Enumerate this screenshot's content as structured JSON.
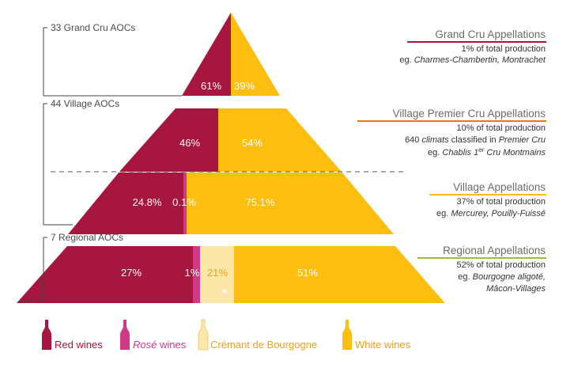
{
  "colors": {
    "red": "#a6163e",
    "rose": "#d03a85",
    "cremant": "#fde7a8",
    "white": "#fdbe10",
    "grand_cru_accent": "#a6163e",
    "premier_cru_accent": "#e07b1a",
    "village_accent": "#fdbe10",
    "regional_accent": "#9cbf3a"
  },
  "tiers": {
    "grand_cru_label": "33 Grand Cru AOCs",
    "village_label": "44 Village AOCs",
    "regional_label": "7 Regional AOCs"
  },
  "chart_data": {
    "type": "bar",
    "orientation": "stacked pyramid",
    "levels": [
      {
        "name": "Grand Cru",
        "red": "61%",
        "white": "39%"
      },
      {
        "name": "Village Premier Cru",
        "red": "46%",
        "white": "54%"
      },
      {
        "name": "Village",
        "red": "24.8%",
        "rose": "0.1%",
        "white": "75.1%"
      },
      {
        "name": "Regional",
        "red": "27%",
        "rose": "1%",
        "cremant": "21%",
        "white": "51%"
      }
    ],
    "values": {
      "grand_cru": [
        61,
        39
      ],
      "premier_cru": [
        46,
        54
      ],
      "village": [
        24.8,
        0.1,
        75.1
      ],
      "regional": [
        27,
        1,
        21,
        51
      ]
    }
  },
  "appellations": [
    {
      "title": "Grand Cru Appellations",
      "lines": [
        [
          {
            "t": "1% of total production"
          }
        ],
        [
          {
            "t": "eg. "
          },
          {
            "t": "Charmes-Chambertin, Montrachet",
            "i": true
          }
        ]
      ]
    },
    {
      "title": "Village Premier Cru Appellations",
      "lines": [
        [
          {
            "t": "10% of total production"
          }
        ],
        [
          {
            "t": "640 "
          },
          {
            "t": "climats",
            "i": true
          },
          {
            "t": " classified in "
          },
          {
            "t": "Premier Cru",
            "i": true
          }
        ],
        [
          {
            "t": "eg. "
          },
          {
            "t": "Chablis 1",
            "i": true
          },
          {
            "t": "er",
            "i": true,
            "sup": true
          },
          {
            "t": " Cru Montmains",
            "i": true
          }
        ]
      ]
    },
    {
      "title": "Village Appellations",
      "lines": [
        [
          {
            "t": "37% of total production"
          }
        ],
        [
          {
            "t": "eg. "
          },
          {
            "t": "Mercurey, Pouilly-Fuissé",
            "i": true
          }
        ]
      ]
    },
    {
      "title": "Regional Appellations",
      "lines": [
        [
          {
            "t": "52% of total production"
          }
        ],
        [
          {
            "t": "eg. "
          },
          {
            "t": "Bourgogne aligoté,",
            "i": true
          }
        ],
        [
          {
            "t": "Mâcon-Villages",
            "i": true
          }
        ]
      ]
    }
  ],
  "legend": [
    {
      "parts": [
        {
          "t": "Red wines"
        }
      ],
      "color": "#a6163e",
      "icon": "red-wine-bottle-icon"
    },
    {
      "parts": [
        {
          "t": "Rosé",
          "i": true
        },
        {
          "t": " wines"
        }
      ],
      "color": "#d03a85",
      "icon": "rose-wine-bottle-icon"
    },
    {
      "parts": [
        {
          "t": "Crémant de Bourgogne"
        }
      ],
      "color": "#e8a317",
      "icon": "cremant-bottle-icon"
    },
    {
      "parts": [
        {
          "t": "White wines"
        }
      ],
      "color": "#e8a317",
      "icon": "white-wine-bottle-icon"
    }
  ]
}
